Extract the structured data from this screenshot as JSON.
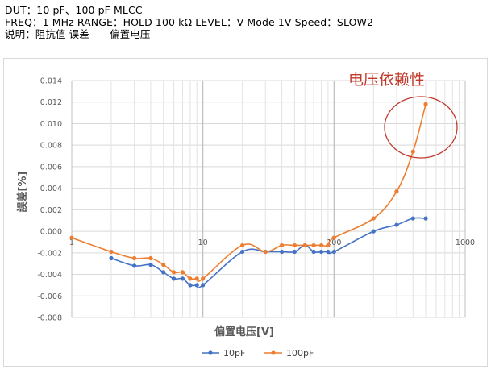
{
  "header": {
    "lines": [
      "DUT：10 pF、100 pF   MLCC",
      "FREQ：1 MHz    RANGE：HOLD 100 kΩ    LEVEL：V Mode 1V   Speed：SLOW2",
      "说明：阻抗值   误差——偏置电压"
    ]
  },
  "chart_data": {
    "type": "line",
    "x_scale": "log",
    "xlim": [
      1,
      1000
    ],
    "ylim": [
      -0.008,
      0.014
    ],
    "x_ticks": [
      "1",
      "10",
      "100",
      "1000"
    ],
    "y_ticks": [
      "0.014",
      "0.012",
      "0.010",
      "0.008",
      "0.006",
      "0.004",
      "0.002",
      "0.000",
      "-0.002",
      "-0.004",
      "-0.006",
      "-0.008"
    ],
    "xlabel": "偏置电压[V]",
    "ylabel": "誤差[%]",
    "grid": true,
    "legend_position": "bottom",
    "annotation": "电压依赖性",
    "annotation_color": "#c0392b",
    "series": [
      {
        "name": "10pF",
        "color": "#4472c4",
        "points": [
          [
            2,
            -0.0025
          ],
          [
            3,
            -0.0032
          ],
          [
            4,
            -0.0031
          ],
          [
            5,
            -0.0038
          ],
          [
            6,
            -0.0044
          ],
          [
            7,
            -0.0044
          ],
          [
            8,
            -0.005
          ],
          [
            9,
            -0.005
          ],
          [
            10,
            -0.005
          ],
          [
            20,
            -0.0019
          ],
          [
            30,
            -0.0019
          ],
          [
            40,
            -0.0019
          ],
          [
            50,
            -0.0019
          ],
          [
            60,
            -0.0013
          ],
          [
            70,
            -0.0019
          ],
          [
            80,
            -0.0019
          ],
          [
            90,
            -0.0019
          ],
          [
            100,
            -0.0019
          ],
          [
            200,
            0.0
          ],
          [
            300,
            0.0006
          ],
          [
            400,
            0.0012
          ],
          [
            500,
            0.0012
          ]
        ]
      },
      {
        "name": "100pF",
        "color": "#ed7d31",
        "points": [
          [
            1,
            -0.0006
          ],
          [
            2,
            -0.0019
          ],
          [
            3,
            -0.0025
          ],
          [
            4,
            -0.0025
          ],
          [
            5,
            -0.0031
          ],
          [
            6,
            -0.0038
          ],
          [
            7,
            -0.0038
          ],
          [
            8,
            -0.0044
          ],
          [
            9,
            -0.0044
          ],
          [
            10,
            -0.0044
          ],
          [
            20,
            -0.0013
          ],
          [
            30,
            -0.0019
          ],
          [
            40,
            -0.0013
          ],
          [
            50,
            -0.0013
          ],
          [
            60,
            -0.0013
          ],
          [
            70,
            -0.0013
          ],
          [
            80,
            -0.0013
          ],
          [
            90,
            -0.0013
          ],
          [
            100,
            -0.0006
          ],
          [
            200,
            0.0012
          ],
          [
            300,
            0.0037
          ],
          [
            400,
            0.0074
          ],
          [
            500,
            0.0118
          ]
        ]
      }
    ]
  }
}
